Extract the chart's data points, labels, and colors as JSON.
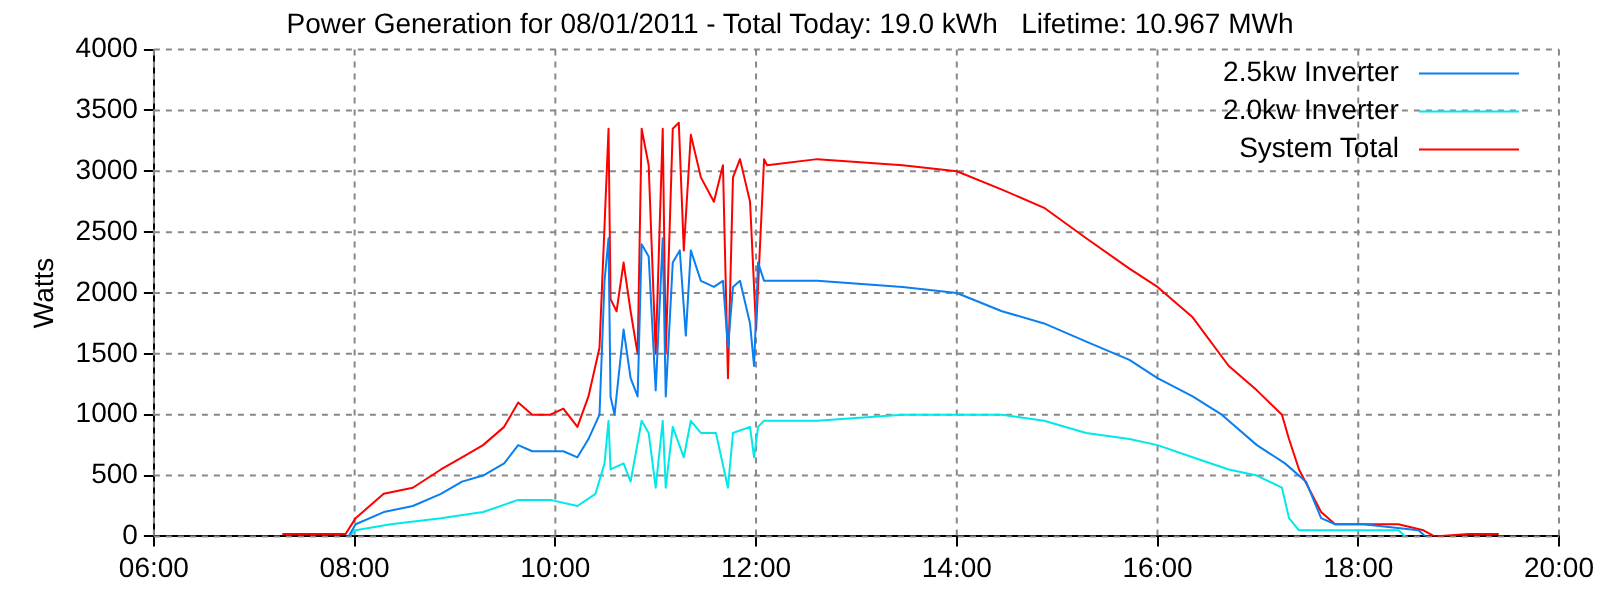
{
  "chart_data": {
    "type": "line",
    "title": "Power Generation for 08/01/2011 - Total Today: 19.0 kWh   Lifetime: 10.967 MWh",
    "ylabel": "Watts",
    "xlim": [
      6,
      20
    ],
    "xticks": [
      {
        "value": 6,
        "label": "06:00"
      },
      {
        "value": 8,
        "label": "08:00"
      },
      {
        "value": 10,
        "label": "10:00"
      },
      {
        "value": 12,
        "label": "12:00"
      },
      {
        "value": 14,
        "label": "14:00"
      },
      {
        "value": 16,
        "label": "16:00"
      },
      {
        "value": 18,
        "label": "18:00"
      },
      {
        "value": 20,
        "label": "20:00"
      }
    ],
    "ylim": [
      0,
      4000
    ],
    "yticks": [
      0,
      500,
      1000,
      1500,
      2000,
      2500,
      3000,
      3500,
      4000
    ],
    "grid": true,
    "legend": "top right",
    "marker": "none",
    "line_style": "solid",
    "series": [
      {
        "name": "2.5kw Inverter",
        "color": "#0a7ff0",
        "x": [
          7.94,
          8.01,
          8.29,
          8.58,
          8.86,
          9.07,
          9.28,
          9.49,
          9.63,
          9.77,
          9.95,
          10.08,
          10.22,
          10.33,
          10.44,
          10.49,
          10.53,
          10.55,
          10.59,
          10.68,
          10.75,
          10.82,
          10.86,
          10.93,
          11.0,
          11.07,
          11.1,
          11.17,
          11.24,
          11.3,
          11.35,
          11.45,
          11.58,
          11.67,
          11.72,
          11.77,
          11.84,
          11.94,
          11.98,
          12.02,
          12.08,
          12.11,
          12.61,
          13.46,
          14.0,
          14.45,
          14.87,
          15.29,
          15.72,
          16.0,
          16.35,
          16.64,
          16.99,
          17.27,
          17.48,
          17.63,
          17.77,
          18.05,
          18.6,
          18.67
        ],
        "values": [
          0,
          100,
          200,
          250,
          350,
          450,
          500,
          600,
          750,
          700,
          700,
          700,
          650,
          800,
          1000,
          2100,
          2450,
          1150,
          1000,
          1700,
          1300,
          1150,
          2400,
          2300,
          1200,
          2450,
          1150,
          2250,
          2350,
          1650,
          2350,
          2100,
          2050,
          2100,
          1550,
          2050,
          2100,
          1750,
          1400,
          2250,
          2100,
          2100,
          2100,
          2050,
          2000,
          1850,
          1750,
          1600,
          1450,
          1300,
          1150,
          1000,
          750,
          600,
          450,
          150,
          100,
          100,
          50,
          0
        ]
      },
      {
        "name": "2.0kw Inverter",
        "color": "#00e8e8",
        "x": [
          7.94,
          8.01,
          8.36,
          8.86,
          9.28,
          9.63,
          9.95,
          10.22,
          10.4,
          10.49,
          10.53,
          10.55,
          10.68,
          10.75,
          10.86,
          10.93,
          11.0,
          11.07,
          11.1,
          11.17,
          11.28,
          11.35,
          11.45,
          11.6,
          11.72,
          11.77,
          11.94,
          11.98,
          12.02,
          12.08,
          12.11,
          12.61,
          13.46,
          14.0,
          14.45,
          14.87,
          15.29,
          15.72,
          16.0,
          16.35,
          16.71,
          16.99,
          17.24,
          17.31,
          17.41,
          18.05,
          18.4,
          18.47
        ],
        "values": [
          0,
          50,
          100,
          150,
          200,
          300,
          300,
          250,
          350,
          600,
          950,
          550,
          600,
          450,
          950,
          850,
          400,
          950,
          400,
          900,
          650,
          950,
          850,
          850,
          400,
          850,
          900,
          650,
          900,
          950,
          950,
          950,
          1000,
          1000,
          1000,
          950,
          850,
          800,
          750,
          650,
          550,
          500,
          400,
          150,
          50,
          50,
          50,
          0
        ]
      },
      {
        "name": "System Total",
        "color": "#ff0000",
        "x": [
          7.28,
          7.66,
          7.91,
          8.01,
          8.29,
          8.58,
          8.86,
          9.07,
          9.28,
          9.49,
          9.63,
          9.77,
          9.95,
          10.08,
          10.22,
          10.33,
          10.44,
          10.51,
          10.53,
          10.55,
          10.61,
          10.68,
          10.75,
          10.82,
          10.86,
          10.93,
          11.0,
          11.07,
          11.1,
          11.17,
          11.23,
          11.28,
          11.35,
          11.45,
          11.58,
          11.67,
          11.72,
          11.77,
          11.84,
          11.94,
          12.0,
          12.08,
          12.11,
          12.61,
          13.46,
          14.0,
          14.45,
          14.87,
          15.29,
          15.72,
          16.0,
          16.35,
          16.71,
          16.99,
          17.24,
          17.31,
          17.41,
          17.63,
          17.77,
          17.98,
          18.4,
          18.65,
          18.76,
          19.1,
          19.4
        ],
        "values": [
          20,
          20,
          20,
          150,
          350,
          400,
          550,
          650,
          750,
          900,
          1100,
          1000,
          1000,
          1050,
          900,
          1150,
          1550,
          2950,
          3350,
          1950,
          1850,
          2250,
          1850,
          1500,
          3350,
          3050,
          1500,
          3350,
          1500,
          3350,
          3400,
          2350,
          3300,
          2950,
          2750,
          3050,
          1300,
          2950,
          3100,
          2750,
          1700,
          3100,
          3050,
          3100,
          3050,
          3000,
          2850,
          2700,
          2450,
          2200,
          2050,
          1800,
          1400,
          1200,
          1000,
          800,
          550,
          200,
          100,
          100,
          100,
          50,
          0,
          20,
          20
        ]
      }
    ]
  }
}
